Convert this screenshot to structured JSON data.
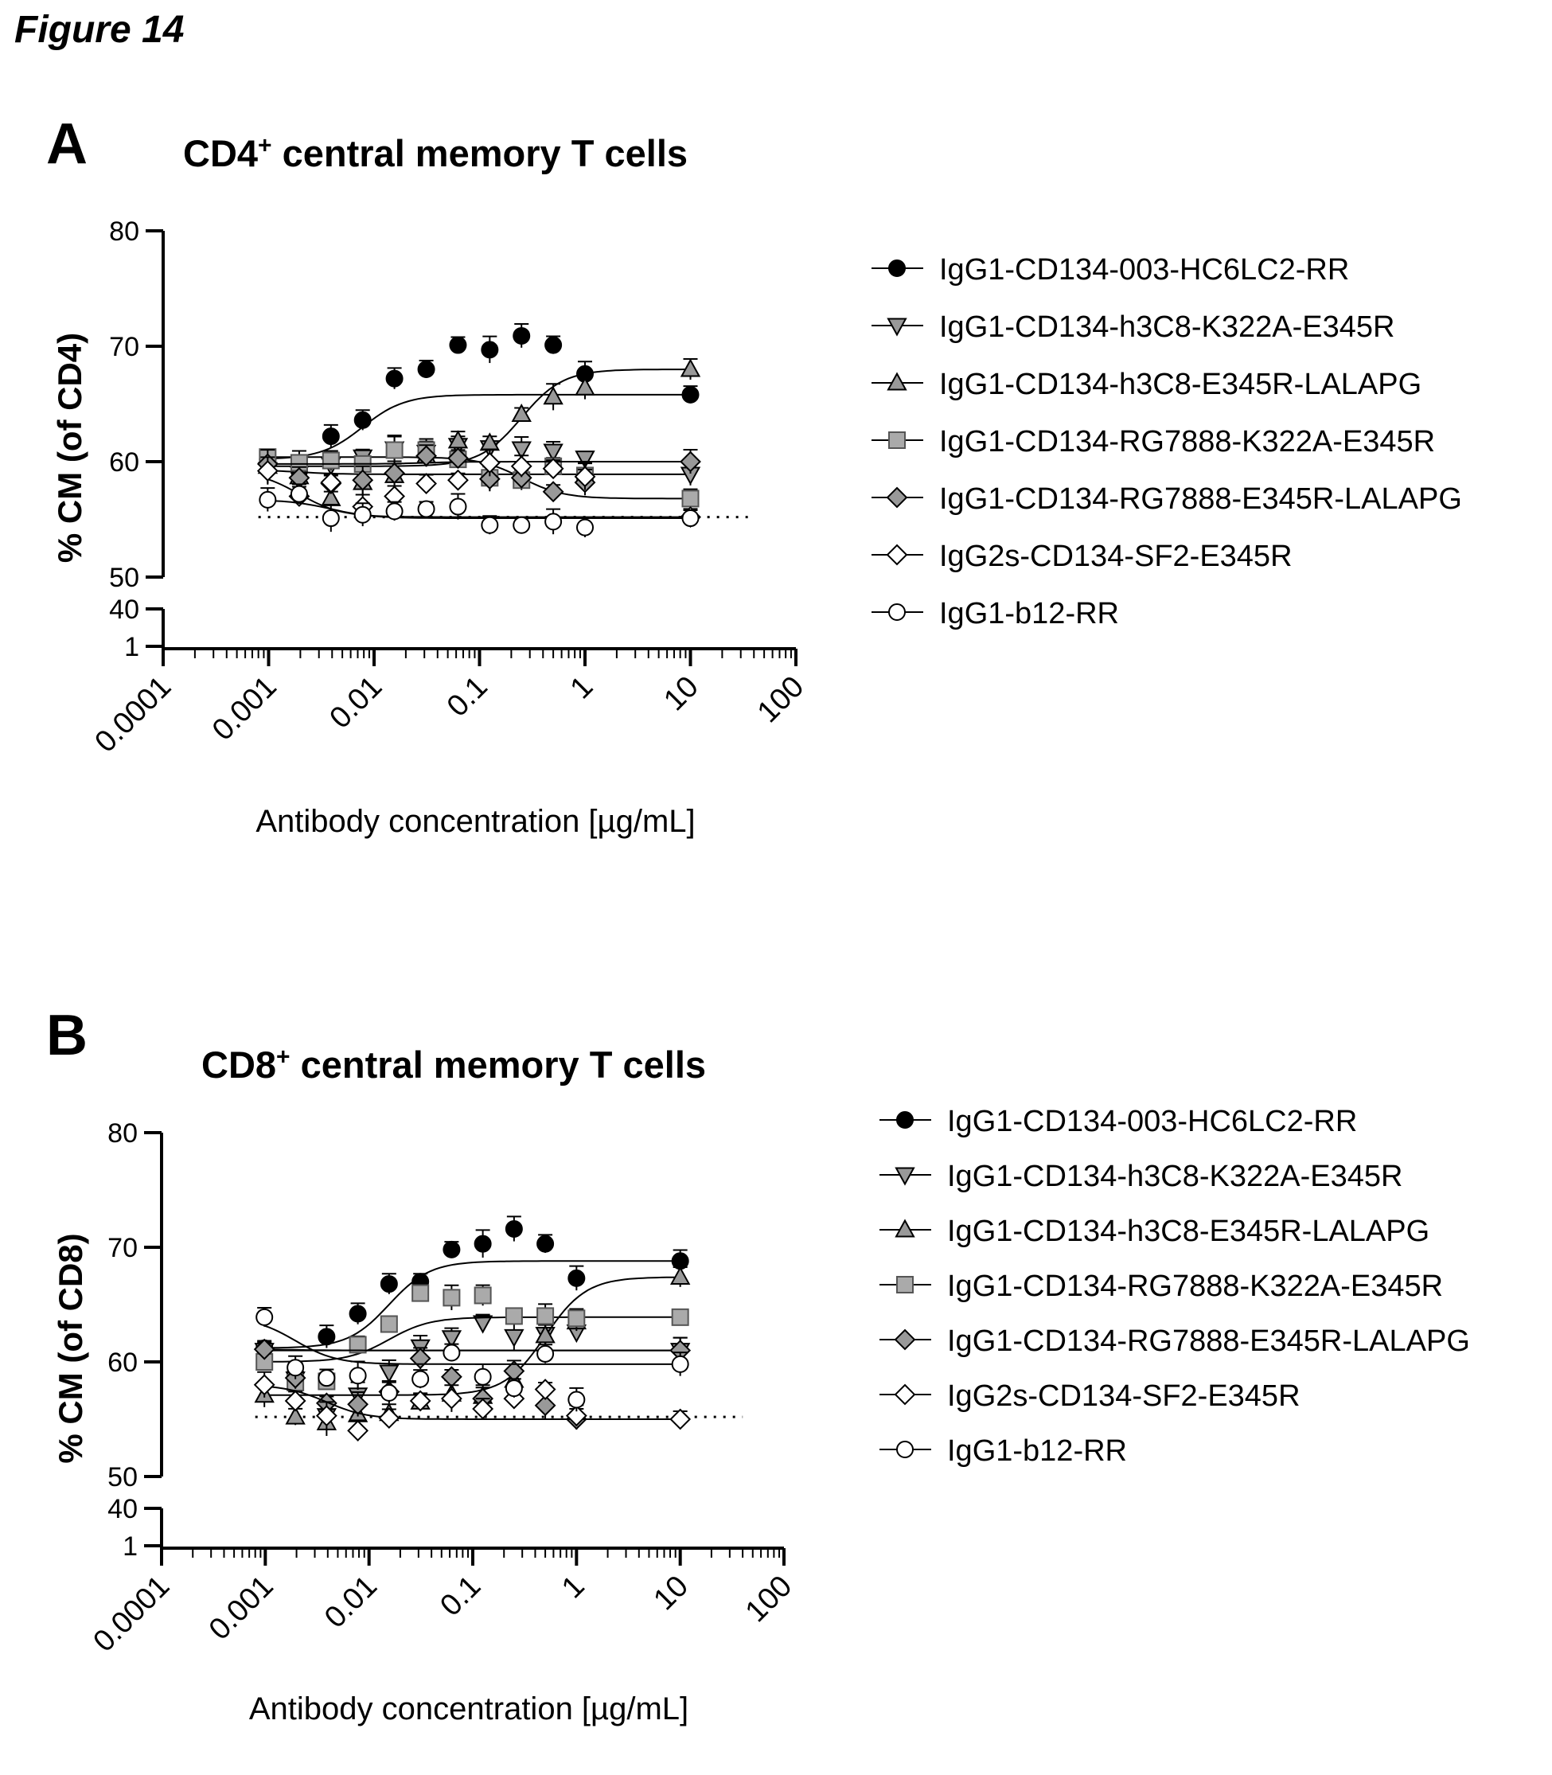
{
  "figure_title": "Figure 14",
  "chart_data": [
    {
      "panel_letter": "A",
      "type": "scatter",
      "title_main": "CD4",
      "title_sup": "+",
      "title_rest": " central memory T cells",
      "ylabel": "% CM (of CD4)",
      "xlabel": "Antibody concentration [µg/mL]",
      "x_scale": "log",
      "xlim": [
        0.0001,
        100
      ],
      "x_ticks": [
        "0.0001",
        "0.001",
        "0.01",
        "0.1",
        "1",
        "10",
        "100"
      ],
      "y_axis_broken": true,
      "y_ticks_upper": [
        "50",
        "60",
        "70",
        "80"
      ],
      "y_ticks_lower": [
        "1",
        "40"
      ],
      "ylim": [
        50,
        80
      ],
      "baseline": 55.2,
      "legend_position": "right",
      "x": [
        0.00098,
        0.00195,
        0.0039,
        0.0078,
        0.0156,
        0.03125,
        0.0625,
        0.125,
        0.25,
        0.5,
        1,
        10
      ],
      "series": [
        {
          "name": "IgG1-CD134-003-HC6LC2-RR",
          "marker": "circle",
          "fill": "#000000",
          "stroke": "#000000",
          "values": [
            60.2,
            59.2,
            62.2,
            63.6,
            67.2,
            68.0,
            70.1,
            69.7,
            70.9,
            70.1,
            67.6,
            65.8
          ]
        },
        {
          "name": "IgG1-CD134-h3C8-K322A-E345R",
          "marker": "triangle-down",
          "fill": "#999999",
          "stroke": "#000000",
          "values": [
            59.3,
            59.0,
            59.7,
            60.4,
            61.1,
            60.8,
            61.4,
            61.2,
            61.1,
            60.9,
            60.3,
            58.9
          ]
        },
        {
          "name": "IgG1-CD134-h3C8-E345R-LALAPG",
          "marker": "triangle-up",
          "fill": "#999999",
          "stroke": "#000000",
          "values": [
            59.6,
            58.7,
            56.8,
            58.2,
            58.8,
            60.5,
            61.8,
            61.6,
            64.1,
            65.6,
            66.4,
            68.0
          ]
        },
        {
          "name": "IgG1-CD134-RG7888-K322A-E345R",
          "marker": "square",
          "fill": "#aaaaaa",
          "stroke": "#555555",
          "values": [
            60.4,
            59.9,
            60.1,
            59.8,
            61.0,
            61.0,
            60.2,
            58.6,
            58.4,
            59.6,
            58.8,
            56.8
          ]
        },
        {
          "name": "IgG1-CD134-RG7888-E345R-LALAPG",
          "marker": "diamond",
          "fill": "#999999",
          "stroke": "#000000",
          "values": [
            59.8,
            58.6,
            58.1,
            58.4,
            59.0,
            60.5,
            60.3,
            58.5,
            58.6,
            57.4,
            58.2,
            60.0
          ]
        },
        {
          "name": "IgG2s-CD134-SF2-E345R",
          "marker": "diamond",
          "fill": "#ffffff",
          "stroke": "#000000",
          "values": [
            59.2,
            57.0,
            58.2,
            56.1,
            57.0,
            58.1,
            58.4,
            59.9,
            59.6,
            59.4,
            58.7,
            55.2
          ]
        },
        {
          "name": "IgG1-b12-RR",
          "marker": "circle",
          "fill": "#ffffff",
          "stroke": "#000000",
          "values": [
            56.7,
            57.2,
            55.1,
            55.4,
            55.7,
            55.9,
            56.1,
            54.5,
            54.5,
            54.8,
            54.3,
            55.1
          ]
        }
      ]
    },
    {
      "panel_letter": "B",
      "type": "scatter",
      "title_main": "CD8",
      "title_sup": "+",
      "title_rest": " central memory T cells",
      "ylabel": "% CM (of CD8)",
      "xlabel": "Antibody concentration [µg/mL]",
      "x_scale": "log",
      "xlim": [
        0.0001,
        100
      ],
      "x_ticks": [
        "0.0001",
        "0.001",
        "0.01",
        "0.1",
        "1",
        "10",
        "100"
      ],
      "y_axis_broken": true,
      "y_ticks_upper": [
        "50",
        "60",
        "70",
        "80"
      ],
      "y_ticks_lower": [
        "1",
        "40"
      ],
      "ylim": [
        50,
        80
      ],
      "baseline": 55.2,
      "legend_position": "right",
      "x": [
        0.00098,
        0.00195,
        0.0039,
        0.0078,
        0.0156,
        0.03125,
        0.0625,
        0.125,
        0.25,
        0.5,
        1,
        10
      ],
      "series": [
        {
          "name": "IgG1-CD134-003-HC6LC2-RR",
          "marker": "circle",
          "fill": "#000000",
          "stroke": "#000000",
          "values": [
            61.2,
            59.0,
            62.2,
            64.2,
            66.8,
            67.0,
            69.8,
            70.3,
            71.6,
            70.3,
            67.3,
            68.8
          ]
        },
        {
          "name": "IgG1-CD134-h3C8-K322A-E345R",
          "marker": "triangle-down",
          "fill": "#999999",
          "stroke": "#000000",
          "values": [
            61.0,
            58.5,
            55.3,
            57.1,
            59.1,
            61.3,
            62.1,
            63.4,
            62.2,
            62.4,
            62.6,
            61.0
          ]
        },
        {
          "name": "IgG1-CD134-h3C8-E345R-LALAPG",
          "marker": "triangle-up",
          "fill": "#999999",
          "stroke": "#000000",
          "values": [
            57.1,
            55.2,
            54.7,
            55.4,
            55.5,
            56.5,
            57.2,
            57.0,
            58.4,
            62.3,
            63.5,
            67.4
          ]
        },
        {
          "name": "IgG1-CD134-RG7888-K322A-E345R",
          "marker": "square",
          "fill": "#aaaaaa",
          "stroke": "#555555",
          "values": [
            60.0,
            58.2,
            58.3,
            61.5,
            63.3,
            66.0,
            65.6,
            65.8,
            64.0,
            64.0,
            63.8,
            63.9
          ]
        },
        {
          "name": "IgG1-CD134-RG7888-E345R-LALAPG",
          "marker": "diamond",
          "fill": "#999999",
          "stroke": "#000000",
          "values": [
            61.1,
            58.6,
            56.4,
            56.3,
            57.4,
            60.3,
            58.7,
            56.8,
            59.2,
            56.2,
            55.0,
            61.0
          ]
        },
        {
          "name": "IgG2s-CD134-SF2-E345R",
          "marker": "diamond",
          "fill": "#ffffff",
          "stroke": "#000000",
          "values": [
            58.0,
            56.6,
            55.3,
            54.0,
            55.1,
            56.6,
            56.8,
            55.9,
            56.8,
            57.6,
            55.3,
            55.0
          ]
        },
        {
          "name": "IgG1-b12-RR",
          "marker": "circle",
          "fill": "#ffffff",
          "stroke": "#000000",
          "values": [
            63.9,
            59.5,
            58.6,
            58.8,
            57.3,
            58.5,
            60.8,
            58.7,
            57.7,
            60.7,
            56.7,
            59.8
          ]
        }
      ]
    }
  ]
}
